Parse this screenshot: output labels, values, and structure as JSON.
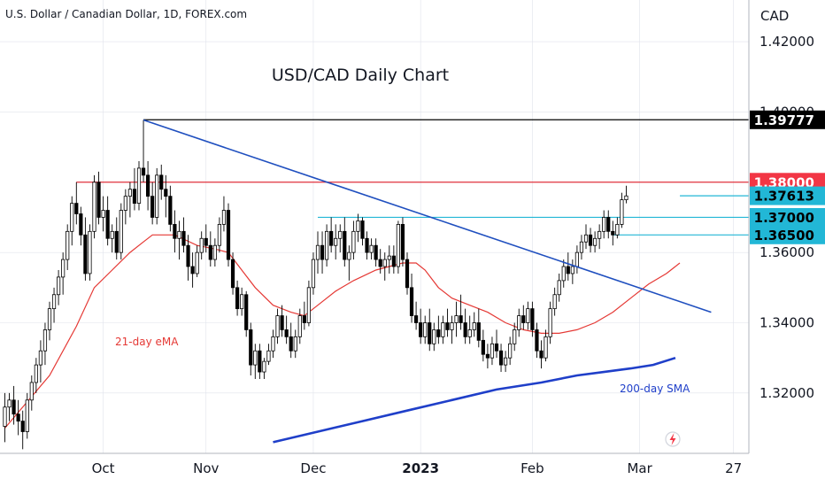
{
  "header": {
    "symbol_title": "U.S. Dollar / Canadian Dollar, 1D, FOREX.com"
  },
  "chart_data": {
    "type": "candlestick",
    "title": "USD/CAD Daily Chart",
    "currency_label": "CAD",
    "y_ticks": [
      {
        "value": 1.42,
        "label": "1.42000"
      },
      {
        "value": 1.36,
        "label": "1.36000"
      },
      {
        "value": 1.34,
        "label": "1.34000"
      },
      {
        "value": 1.32,
        "label": "1.32000"
      }
    ],
    "partial_tick": {
      "value": 1.4,
      "label": "1.40000"
    },
    "x_labels": [
      {
        "label": "Oct",
        "bar": 22
      },
      {
        "label": "Nov",
        "bar": 45
      },
      {
        "label": "Dec",
        "bar": 69
      },
      {
        "label": "2023",
        "bar": 93
      },
      {
        "label": "Feb",
        "bar": 118
      },
      {
        "label": "Mar",
        "bar": 142
      },
      {
        "label": "27",
        "bar": 163
      }
    ],
    "price_tags": [
      {
        "value": 1.39777,
        "label": "1.39777",
        "color": "#000000"
      },
      {
        "value": 1.38,
        "label": "1.38000",
        "color": "#f23645"
      },
      {
        "value": 1.37613,
        "label": "1.37613",
        "color": "#22b7d6"
      },
      {
        "value": 1.37,
        "label": "1.37000",
        "color": "#22b7d6"
      },
      {
        "value": 1.365,
        "label": "1.36500",
        "color": "#22b7d6"
      }
    ],
    "horizontal_lines": [
      {
        "value": 1.39777,
        "from_bar": 31,
        "color": "#000000"
      },
      {
        "value": 1.38,
        "from_bar": 16,
        "color": "#e0303c"
      },
      {
        "value": 1.37,
        "from_bar": 70,
        "color": "#22b7d6"
      },
      {
        "value": 1.365,
        "from_bar": 136,
        "color": "#22b7d6"
      },
      {
        "value": 1.37613,
        "from_bar": 151,
        "color": "#22b7d6"
      }
    ],
    "trendline": {
      "from": {
        "bar": 31,
        "value": 1.3977
      },
      "to": {
        "bar": 158,
        "value": 1.343
      },
      "color": "#1f4fbf"
    },
    "ema_label": "21-day eMA",
    "sma_label": "200-day SMA",
    "colors": {
      "up": "#ffffff",
      "down": "#000000",
      "wick": "#000000",
      "ema": "#e53935",
      "sma": "#1f3fc9",
      "grid": "#e0e3eb"
    },
    "ohlc": [
      [
        1.3105,
        1.32,
        1.306,
        1.316
      ],
      [
        1.316,
        1.32,
        1.312,
        1.318
      ],
      [
        1.318,
        1.322,
        1.311,
        1.314
      ],
      [
        1.314,
        1.318,
        1.308,
        1.312
      ],
      [
        1.312,
        1.315,
        1.304,
        1.309
      ],
      [
        1.309,
        1.32,
        1.307,
        1.318
      ],
      [
        1.318,
        1.325,
        1.315,
        1.323
      ],
      [
        1.323,
        1.33,
        1.32,
        1.328
      ],
      [
        1.328,
        1.335,
        1.323,
        1.332
      ],
      [
        1.332,
        1.34,
        1.328,
        1.338
      ],
      [
        1.338,
        1.346,
        1.335,
        1.344
      ],
      [
        1.344,
        1.35,
        1.34,
        1.348
      ],
      [
        1.348,
        1.355,
        1.345,
        1.353
      ],
      [
        1.353,
        1.36,
        1.348,
        1.358
      ],
      [
        1.358,
        1.368,
        1.355,
        1.366
      ],
      [
        1.366,
        1.376,
        1.362,
        1.374
      ],
      [
        1.374,
        1.38,
        1.368,
        1.371
      ],
      [
        1.371,
        1.373,
        1.362,
        1.365
      ],
      [
        1.365,
        1.37,
        1.352,
        1.354
      ],
      [
        1.354,
        1.368,
        1.352,
        1.366
      ],
      [
        1.366,
        1.382,
        1.364,
        1.38
      ],
      [
        1.38,
        1.383,
        1.368,
        1.37
      ],
      [
        1.37,
        1.376,
        1.366,
        1.372
      ],
      [
        1.372,
        1.376,
        1.362,
        1.364
      ],
      [
        1.364,
        1.368,
        1.36,
        1.366
      ],
      [
        1.366,
        1.37,
        1.358,
        1.36
      ],
      [
        1.36,
        1.374,
        1.358,
        1.372
      ],
      [
        1.372,
        1.378,
        1.368,
        1.376
      ],
      [
        1.376,
        1.38,
        1.37,
        1.378
      ],
      [
        1.378,
        1.384,
        1.372,
        1.374
      ],
      [
        1.374,
        1.386,
        1.372,
        1.384
      ],
      [
        1.384,
        1.3977,
        1.38,
        1.382
      ],
      [
        1.382,
        1.386,
        1.372,
        1.376
      ],
      [
        1.376,
        1.38,
        1.368,
        1.37
      ],
      [
        1.37,
        1.384,
        1.368,
        1.382
      ],
      [
        1.382,
        1.385,
        1.375,
        1.378
      ],
      [
        1.378,
        1.382,
        1.37,
        1.376
      ],
      [
        1.376,
        1.379,
        1.366,
        1.368
      ],
      [
        1.368,
        1.372,
        1.36,
        1.364
      ],
      [
        1.364,
        1.369,
        1.358,
        1.366
      ],
      [
        1.366,
        1.37,
        1.36,
        1.362
      ],
      [
        1.362,
        1.365,
        1.352,
        1.356
      ],
      [
        1.356,
        1.36,
        1.35,
        1.354
      ],
      [
        1.354,
        1.362,
        1.353,
        1.36
      ],
      [
        1.36,
        1.366,
        1.358,
        1.364
      ],
      [
        1.364,
        1.368,
        1.36,
        1.362
      ],
      [
        1.362,
        1.366,
        1.356,
        1.358
      ],
      [
        1.358,
        1.364,
        1.356,
        1.362
      ],
      [
        1.362,
        1.37,
        1.36,
        1.368
      ],
      [
        1.368,
        1.376,
        1.366,
        1.372
      ],
      [
        1.372,
        1.374,
        1.356,
        1.358
      ],
      [
        1.358,
        1.36,
        1.348,
        1.35
      ],
      [
        1.35,
        1.352,
        1.342,
        1.344
      ],
      [
        1.344,
        1.35,
        1.342,
        1.348
      ],
      [
        1.348,
        1.349,
        1.336,
        1.338
      ],
      [
        1.338,
        1.34,
        1.325,
        1.328
      ],
      [
        1.328,
        1.334,
        1.324,
        1.332
      ],
      [
        1.332,
        1.334,
        1.324,
        1.326
      ],
      [
        1.326,
        1.33,
        1.324,
        1.329
      ],
      [
        1.329,
        1.334,
        1.328,
        1.332
      ],
      [
        1.332,
        1.338,
        1.33,
        1.336
      ],
      [
        1.336,
        1.344,
        1.334,
        1.342
      ],
      [
        1.342,
        1.345,
        1.336,
        1.338
      ],
      [
        1.338,
        1.342,
        1.334,
        1.336
      ],
      [
        1.336,
        1.34,
        1.33,
        1.332
      ],
      [
        1.332,
        1.338,
        1.33,
        1.336
      ],
      [
        1.336,
        1.344,
        1.334,
        1.342
      ],
      [
        1.342,
        1.346,
        1.338,
        1.34
      ],
      [
        1.34,
        1.352,
        1.339,
        1.35
      ],
      [
        1.35,
        1.36,
        1.348,
        1.358
      ],
      [
        1.358,
        1.366,
        1.354,
        1.362
      ],
      [
        1.362,
        1.366,
        1.354,
        1.358
      ],
      [
        1.358,
        1.368,
        1.356,
        1.366
      ],
      [
        1.366,
        1.37,
        1.36,
        1.362
      ],
      [
        1.362,
        1.368,
        1.358,
        1.364
      ],
      [
        1.364,
        1.368,
        1.36,
        1.366
      ],
      [
        1.366,
        1.37,
        1.356,
        1.358
      ],
      [
        1.358,
        1.362,
        1.352,
        1.36
      ],
      [
        1.36,
        1.369,
        1.358,
        1.366
      ],
      [
        1.366,
        1.371,
        1.363,
        1.369
      ],
      [
        1.369,
        1.37,
        1.362,
        1.364
      ],
      [
        1.364,
        1.366,
        1.358,
        1.36
      ],
      [
        1.36,
        1.364,
        1.358,
        1.362
      ],
      [
        1.362,
        1.364,
        1.356,
        1.358
      ],
      [
        1.358,
        1.361,
        1.354,
        1.356
      ],
      [
        1.356,
        1.36,
        1.352,
        1.358
      ],
      [
        1.358,
        1.362,
        1.354,
        1.359
      ],
      [
        1.359,
        1.362,
        1.354,
        1.356
      ],
      [
        1.356,
        1.369,
        1.354,
        1.368
      ],
      [
        1.368,
        1.37,
        1.356,
        1.358
      ],
      [
        1.358,
        1.36,
        1.348,
        1.35
      ],
      [
        1.35,
        1.354,
        1.34,
        1.342
      ],
      [
        1.342,
        1.346,
        1.338,
        1.34
      ],
      [
        1.34,
        1.344,
        1.334,
        1.336
      ],
      [
        1.336,
        1.342,
        1.334,
        1.34
      ],
      [
        1.34,
        1.344,
        1.332,
        1.334
      ],
      [
        1.334,
        1.34,
        1.332,
        1.338
      ],
      [
        1.338,
        1.342,
        1.334,
        1.336
      ],
      [
        1.336,
        1.342,
        1.334,
        1.34
      ],
      [
        1.34,
        1.344,
        1.336,
        1.338
      ],
      [
        1.338,
        1.342,
        1.334,
        1.34
      ],
      [
        1.34,
        1.346,
        1.336,
        1.342
      ],
      [
        1.342,
        1.348,
        1.338,
        1.34
      ],
      [
        1.34,
        1.344,
        1.334,
        1.336
      ],
      [
        1.336,
        1.342,
        1.334,
        1.338
      ],
      [
        1.338,
        1.343,
        1.336,
        1.34
      ],
      [
        1.34,
        1.344,
        1.333,
        1.335
      ],
      [
        1.335,
        1.338,
        1.329,
        1.331
      ],
      [
        1.331,
        1.334,
        1.327,
        1.33
      ],
      [
        1.33,
        1.336,
        1.328,
        1.334
      ],
      [
        1.334,
        1.338,
        1.33,
        1.332
      ],
      [
        1.332,
        1.334,
        1.326,
        1.328
      ],
      [
        1.328,
        1.332,
        1.326,
        1.33
      ],
      [
        1.33,
        1.336,
        1.328,
        1.334
      ],
      [
        1.334,
        1.34,
        1.332,
        1.338
      ],
      [
        1.338,
        1.344,
        1.336,
        1.342
      ],
      [
        1.342,
        1.345,
        1.338,
        1.34
      ],
      [
        1.34,
        1.346,
        1.338,
        1.344
      ],
      [
        1.344,
        1.346,
        1.336,
        1.338
      ],
      [
        1.338,
        1.34,
        1.33,
        1.332
      ],
      [
        1.332,
        1.335,
        1.327,
        1.33
      ],
      [
        1.33,
        1.338,
        1.329,
        1.336
      ],
      [
        1.336,
        1.346,
        1.334,
        1.344
      ],
      [
        1.344,
        1.35,
        1.342,
        1.348
      ],
      [
        1.348,
        1.354,
        1.346,
        1.352
      ],
      [
        1.352,
        1.358,
        1.35,
        1.356
      ],
      [
        1.356,
        1.36,
        1.352,
        1.354
      ],
      [
        1.354,
        1.358,
        1.351,
        1.356
      ],
      [
        1.356,
        1.362,
        1.354,
        1.36
      ],
      [
        1.36,
        1.365,
        1.358,
        1.363
      ],
      [
        1.363,
        1.368,
        1.361,
        1.365
      ],
      [
        1.365,
        1.367,
        1.36,
        1.362
      ],
      [
        1.362,
        1.366,
        1.36,
        1.364
      ],
      [
        1.364,
        1.368,
        1.361,
        1.366
      ],
      [
        1.366,
        1.372,
        1.364,
        1.37
      ],
      [
        1.37,
        1.372,
        1.364,
        1.366
      ],
      [
        1.366,
        1.369,
        1.362,
        1.365
      ],
      [
        1.365,
        1.37,
        1.364,
        1.368
      ],
      [
        1.368,
        1.377,
        1.367,
        1.375
      ],
      [
        1.375,
        1.379,
        1.374,
        1.3761
      ]
    ],
    "ema21": [
      [
        0,
        1.31
      ],
      [
        10,
        1.325
      ],
      [
        16,
        1.339
      ],
      [
        20,
        1.35
      ],
      [
        24,
        1.355
      ],
      [
        28,
        1.36
      ],
      [
        31,
        1.363
      ],
      [
        33,
        1.365
      ],
      [
        38,
        1.365
      ],
      [
        43,
        1.362
      ],
      [
        47,
        1.361
      ],
      [
        50,
        1.36
      ],
      [
        53,
        1.355
      ],
      [
        56,
        1.35
      ],
      [
        60,
        1.345
      ],
      [
        64,
        1.343
      ],
      [
        67,
        1.342
      ],
      [
        70,
        1.345
      ],
      [
        74,
        1.349
      ],
      [
        78,
        1.352
      ],
      [
        83,
        1.355
      ],
      [
        86,
        1.356
      ],
      [
        89,
        1.357
      ],
      [
        92,
        1.357
      ],
      [
        94,
        1.355
      ],
      [
        97,
        1.35
      ],
      [
        100,
        1.347
      ],
      [
        104,
        1.345
      ],
      [
        108,
        1.343
      ],
      [
        112,
        1.34
      ],
      [
        116,
        1.338
      ],
      [
        120,
        1.337
      ],
      [
        124,
        1.337
      ],
      [
        128,
        1.338
      ],
      [
        132,
        1.34
      ],
      [
        136,
        1.343
      ],
      [
        140,
        1.347
      ],
      [
        144,
        1.351
      ],
      [
        148,
        1.354
      ],
      [
        151,
        1.357
      ]
    ],
    "sma200": [
      [
        60,
        1.306
      ],
      [
        70,
        1.309
      ],
      [
        80,
        1.312
      ],
      [
        90,
        1.315
      ],
      [
        100,
        1.318
      ],
      [
        110,
        1.321
      ],
      [
        120,
        1.323
      ],
      [
        128,
        1.325
      ],
      [
        134,
        1.326
      ],
      [
        140,
        1.327
      ],
      [
        145,
        1.328
      ],
      [
        150,
        1.33
      ]
    ]
  }
}
